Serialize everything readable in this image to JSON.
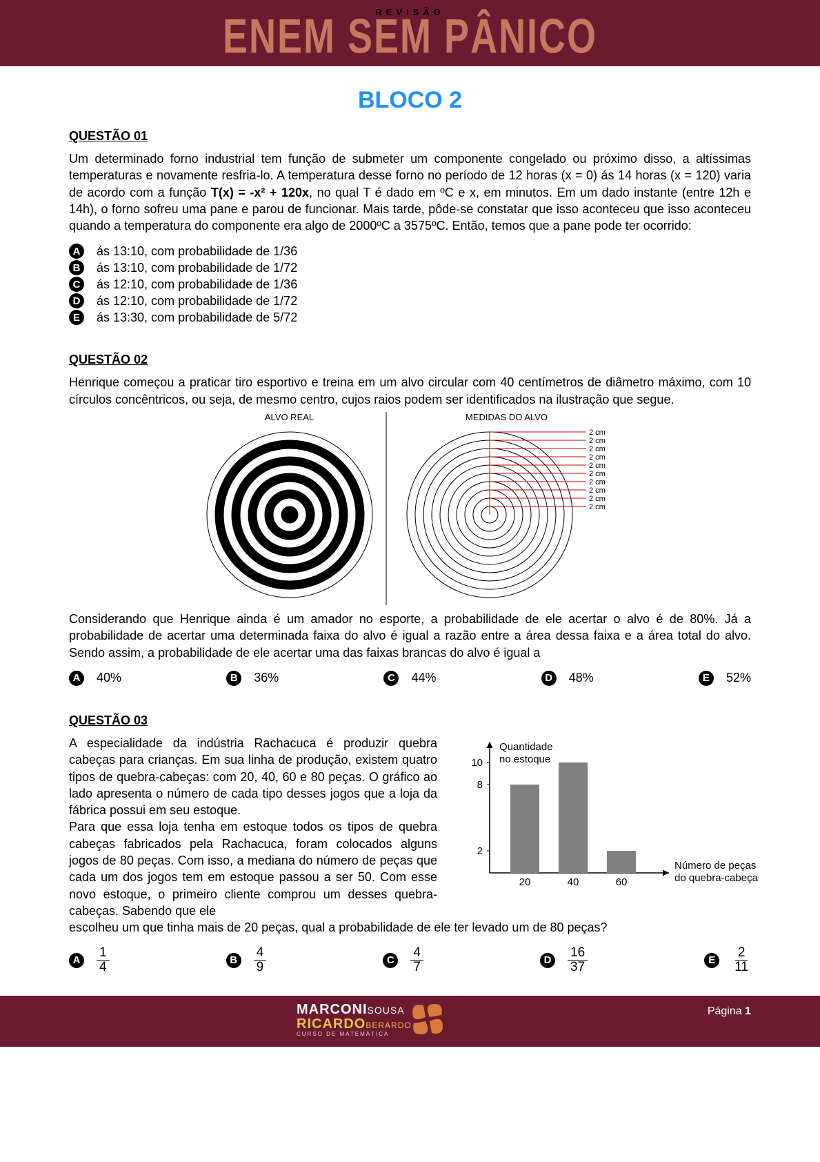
{
  "header": {
    "super": "REVISÃO",
    "title": "ENEM SEM PÂNICO",
    "bg": "#6b1a2f",
    "title_color": "#c7775f"
  },
  "bloco": "BLOCO 2",
  "q1": {
    "head": "QUESTÃO 01",
    "text_a": "Um determinado forno industrial tem função de submeter um componente congelado ou próximo disso, a altíssimas temperaturas e novamente resfria-lo. A temperatura desse forno no período de 12 horas (x = 0) ás 14 horas (x = 120) varia de acordo com a função ",
    "formula": "T(x) = -x² + 120x",
    "text_b": ", no qual T é dado em ºC e x, em minutos. Em um dado instante (entre 12h e 14h), o forno sofreu uma pane e parou de funcionar. Mais tarde, pôde-se constatar que isso aconteceu que isso aconteceu quando a temperatura do componente era algo de 2000ºC a 3575ºC. Então, temos que a pane pode ter ocorrido:",
    "opts": [
      {
        "l": "A",
        "t": "ás 13:10, com probabilidade de 1/36"
      },
      {
        "l": "B",
        "t": "ás 13:10, com probabilidade de 1/72"
      },
      {
        "l": "C",
        "t": "ás 12:10, com probabilidade de 1/36"
      },
      {
        "l": "D",
        "t": "ás 12:10, com probabilidade de 1/72"
      },
      {
        "l": "E",
        "t": "ás 13:30, com probabilidade de 5/72"
      }
    ]
  },
  "q2": {
    "head": "QUESTÃO 02",
    "text_top": "Henrique começou a praticar tiro esportivo e treina em um alvo circular com 40 centímetros de diâmetro máximo, com 10 círculos concêntricos, ou seja, de mesmo centro, cujos raios podem ser identificados na ilustração que segue.",
    "label_left": "ALVO REAL",
    "label_right": "MEDIDAS DO ALVO",
    "text_bottom": "Considerando que Henrique ainda é um amador no esporte, a probabilidade de ele acertar o alvo é de 80%. Já a probabilidade de acertar uma determinada faixa do alvo é igual a razão entre a área dessa faixa e a área total do alvo. Sendo assim, a probabilidade de ele acertar uma das faixas brancas do alvo é igual a",
    "opts": [
      {
        "l": "A",
        "t": "40%"
      },
      {
        "l": "B",
        "t": "36%"
      },
      {
        "l": "C",
        "t": "44%"
      },
      {
        "l": "D",
        "t": "48%"
      },
      {
        "l": "E",
        "t": "52%"
      }
    ],
    "target": {
      "radii_real": [
        12,
        24,
        36,
        48,
        60,
        72,
        84,
        96,
        108,
        120
      ],
      "colors_real": [
        "#000",
        "#fff",
        "#000",
        "#fff",
        "#000",
        "#fff",
        "#000",
        "#fff",
        "#000",
        "#fff"
      ],
      "measure_label": "2 cm",
      "measure_count": 10,
      "stroke": "#000",
      "divider_color": "#000",
      "measure_line_color": "#cc0000"
    }
  },
  "q3": {
    "head": "QUESTÃO 03",
    "text_left": "A especialidade da indústria Rachacuca é produzir quebra cabeças para crianças. Em sua linha de produção, existem quatro tipos de quebra-cabeças: com 20, 40, 60 e 80 peças. O gráfico ao lado apresenta o número de cada tipo desses jogos que a loja da fábrica possui em seu estoque.\nPara que essa loja tenha em estoque todos os tipos de quebra cabeças fabricados pela Rachacuca, foram colocados alguns jogos de 80 peças. Com isso, a mediana do número de peças que cada um dos jogos tem em estoque passou a ser 50. Com esse novo estoque, o primeiro cliente comprou um desses quebra-cabeças. Sabendo que ele escolheu um que tinha mais de 20 peças, qual a probabilidade de ele ter levado um de 80 peças?",
    "chart": {
      "ylabel": "Quantidade\nno estoque",
      "xlabel": "Número de peças\ndo quebra-cabeças",
      "yticks": [
        2,
        8,
        10
      ],
      "xticks": [
        20,
        40,
        60
      ],
      "bars": [
        {
          "x": 20,
          "h": 8
        },
        {
          "x": 40,
          "h": 10
        },
        {
          "x": 60,
          "h": 2
        }
      ],
      "bar_color": "#808080",
      "axis_color": "#000000",
      "bg": "#ffffff"
    },
    "opts": [
      {
        "l": "A",
        "num": "1",
        "den": "4"
      },
      {
        "l": "B",
        "num": "4",
        "den": "9"
      },
      {
        "l": "C",
        "num": "4",
        "den": "7"
      },
      {
        "l": "D",
        "num": "16",
        "den": "37"
      },
      {
        "l": "E",
        "num": "2",
        "den": "11"
      }
    ]
  },
  "footer": {
    "brand1a": "MARCONI",
    "brand1b": "SOUSA",
    "brand2a": "RICARDO",
    "brand2b": "BERARDO",
    "brand3": "CURSO DE MATEMÁTICA",
    "page_label": "Página ",
    "page_num": "1",
    "logo_color": "#d97a3a"
  }
}
